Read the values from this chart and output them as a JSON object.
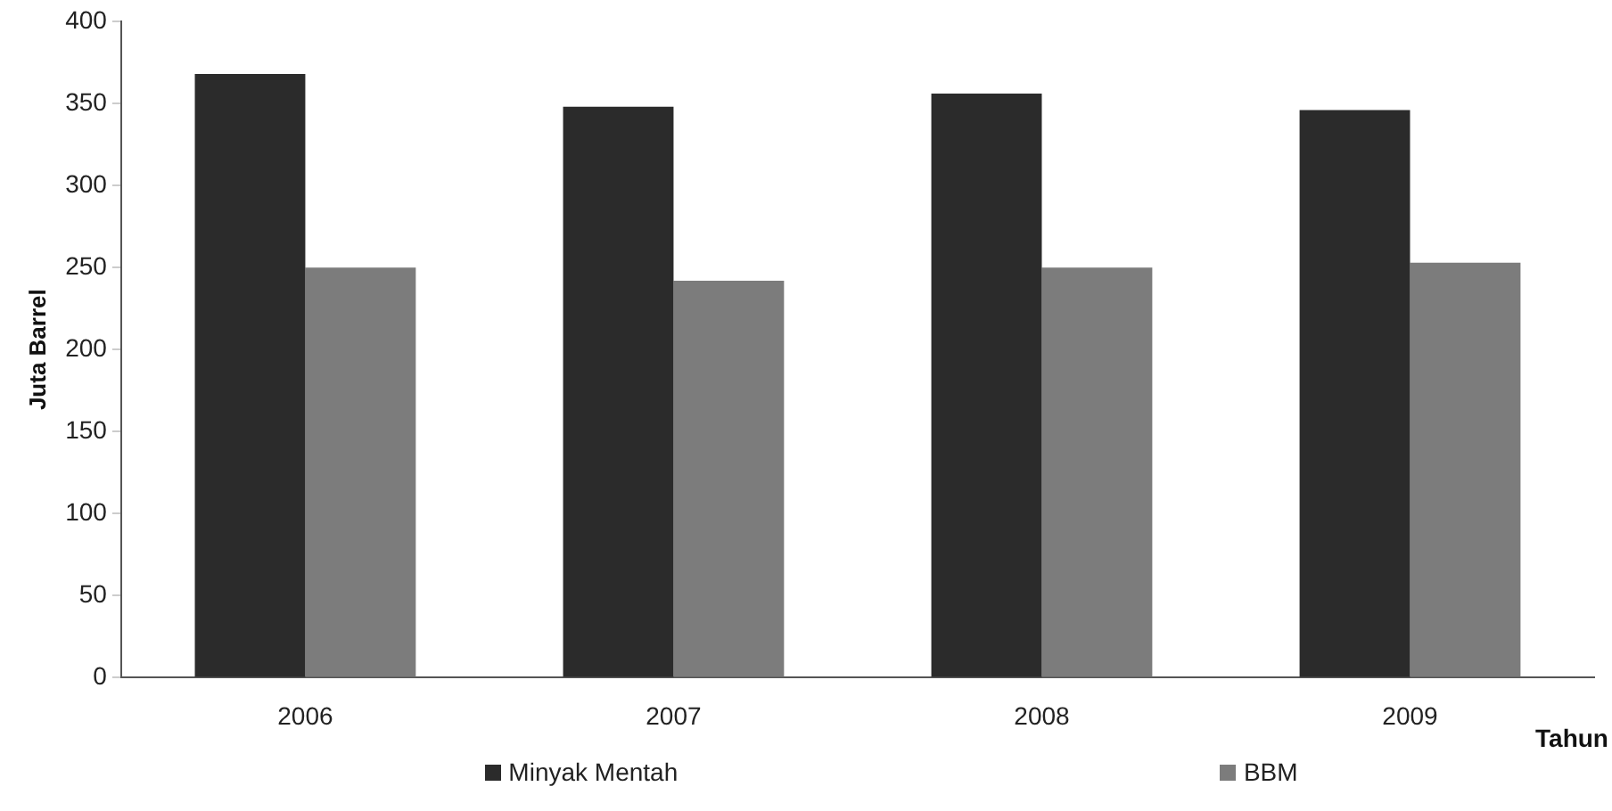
{
  "chart_data": {
    "type": "bar",
    "xlabel": "Tahun",
    "ylabel": "Juta Barrel",
    "categories": [
      "2006",
      "2007",
      "2008",
      "2009"
    ],
    "series": [
      {
        "name": "Minyak Mentah",
        "color": "#2b2b2b",
        "values": [
          368,
          348,
          356,
          346
        ]
      },
      {
        "name": "BBM",
        "color": "#7c7c7c",
        "values": [
          250,
          242,
          250,
          253
        ]
      }
    ],
    "ylim": [
      0,
      400
    ],
    "yticks": [
      0,
      50,
      100,
      150,
      200,
      250,
      300,
      350,
      400
    ],
    "grid": false,
    "legend": "bottom"
  }
}
